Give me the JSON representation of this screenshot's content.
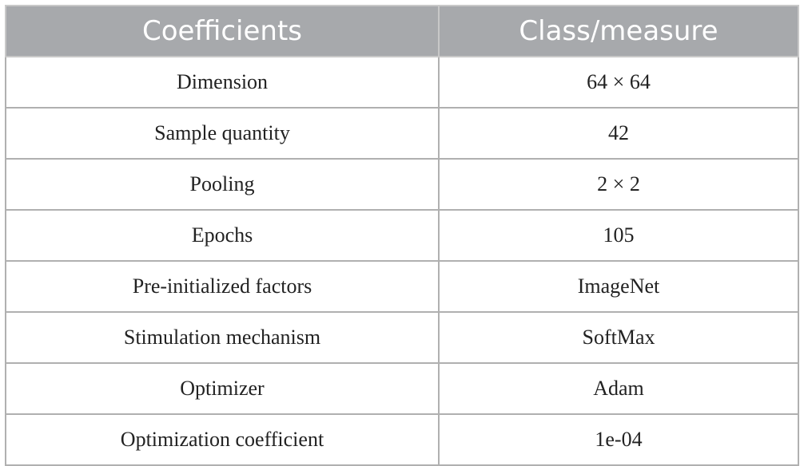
{
  "table": {
    "header": [
      "Coefficients",
      "Class/measure"
    ],
    "rows": [
      [
        "Dimension",
        "64 × 64"
      ],
      [
        "Sample quantity",
        "42"
      ],
      [
        "Pooling",
        "2 × 2"
      ],
      [
        "Epochs",
        "105"
      ],
      [
        "Pre-initialized factors",
        "ImageNet"
      ],
      [
        "Stimulation mechanism",
        "SoftMax"
      ],
      [
        "Optimizer",
        "Adam"
      ],
      [
        "Optimization coefficient",
        "1e-04"
      ]
    ]
  }
}
